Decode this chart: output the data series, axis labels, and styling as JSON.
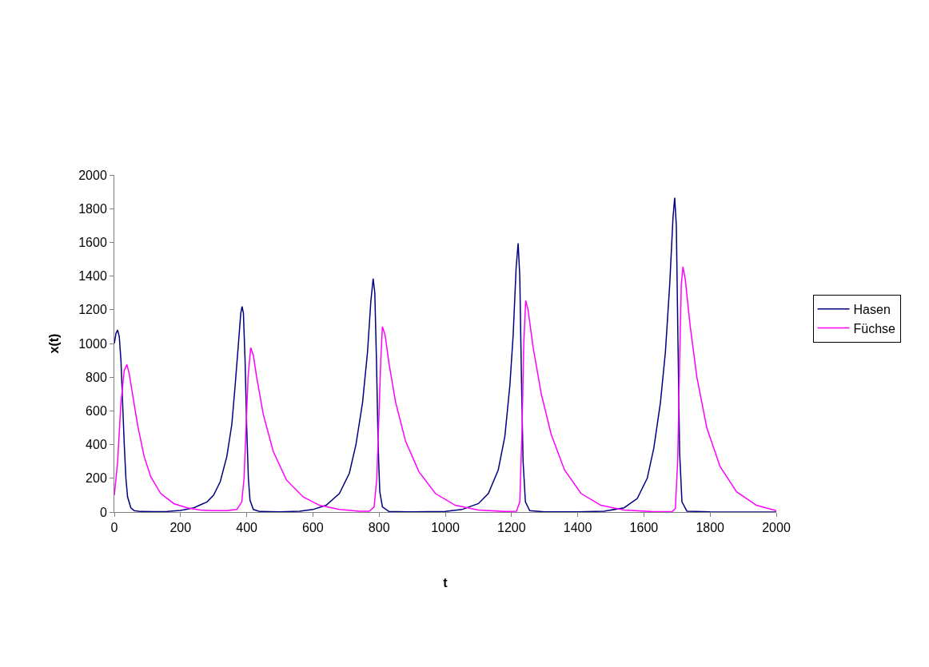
{
  "chart_data": {
    "type": "line",
    "xlabel": "t",
    "ylabel": "x(t)",
    "xlim": [
      0,
      2000
    ],
    "xticks": [
      0,
      200,
      400,
      600,
      800,
      1000,
      1200,
      1400,
      1600,
      1800,
      2000
    ],
    "ylim": [
      0,
      2000
    ],
    "yticks": [
      0,
      200,
      400,
      600,
      800,
      1000,
      1200,
      1400,
      1600,
      1800,
      2000
    ],
    "legend": "right",
    "marker": "none",
    "line_style": "solid",
    "series": [
      {
        "name": "Hasen",
        "color": "#000080",
        "x": [
          0,
          5,
          10,
          15,
          20,
          25,
          30,
          35,
          40,
          50,
          60,
          80,
          120,
          160,
          200,
          240,
          280,
          300,
          320,
          340,
          355,
          365,
          375,
          382,
          386,
          390,
          395,
          400,
          405,
          410,
          420,
          440,
          500,
          560,
          600,
          640,
          680,
          710,
          730,
          750,
          765,
          775,
          782,
          787,
          792,
          797,
          802,
          810,
          830,
          900,
          1000,
          1050,
          1100,
          1130,
          1160,
          1180,
          1195,
          1205,
          1214,
          1220,
          1225,
          1230,
          1235,
          1242,
          1255,
          1300,
          1400,
          1480,
          1540,
          1580,
          1610,
          1630,
          1650,
          1665,
          1678,
          1688,
          1693,
          1698,
          1703,
          1708,
          1715,
          1730,
          1800,
          2000
        ],
        "values": [
          1000,
          1060,
          1080,
          1040,
          900,
          650,
          400,
          200,
          90,
          25,
          8,
          3,
          2,
          4,
          10,
          25,
          60,
          100,
          180,
          330,
          520,
          750,
          1000,
          1180,
          1220,
          1180,
          900,
          500,
          200,
          70,
          15,
          3,
          1,
          5,
          15,
          40,
          110,
          230,
          400,
          650,
          950,
          1250,
          1385,
          1300,
          900,
          400,
          120,
          30,
          3,
          1,
          4,
          15,
          50,
          110,
          250,
          450,
          750,
          1050,
          1450,
          1595,
          1400,
          800,
          300,
          60,
          8,
          1,
          1,
          5,
          25,
          80,
          200,
          380,
          650,
          950,
          1350,
          1750,
          1865,
          1700,
          1000,
          350,
          60,
          5,
          1,
          0
        ]
      },
      {
        "name": "Füchse",
        "color": "#ff00ff",
        "x": [
          0,
          10,
          20,
          30,
          38,
          45,
          55,
          70,
          90,
          110,
          140,
          180,
          220,
          260,
          300,
          340,
          370,
          385,
          392,
          398,
          404,
          412,
          420,
          430,
          450,
          480,
          520,
          570,
          620,
          680,
          740,
          770,
          785,
          793,
          800,
          805,
          810,
          818,
          830,
          850,
          880,
          920,
          970,
          1030,
          1100,
          1180,
          1215,
          1225,
          1232,
          1237,
          1243,
          1250,
          1265,
          1290,
          1320,
          1360,
          1410,
          1470,
          1540,
          1620,
          1685,
          1695,
          1702,
          1708,
          1713,
          1718,
          1725,
          1740,
          1760,
          1790,
          1830,
          1880,
          1940,
          2000
        ],
        "values": [
          100,
          300,
          650,
          840,
          875,
          820,
          700,
          520,
          330,
          210,
          110,
          50,
          25,
          12,
          8,
          8,
          15,
          60,
          200,
          500,
          800,
          975,
          930,
          800,
          580,
          360,
          190,
          90,
          40,
          15,
          5,
          5,
          30,
          200,
          600,
          900,
          1100,
          1050,
          880,
          650,
          420,
          240,
          110,
          40,
          12,
          3,
          5,
          60,
          500,
          1000,
          1255,
          1200,
          980,
          700,
          460,
          250,
          110,
          40,
          12,
          3,
          2,
          20,
          300,
          900,
          1350,
          1455,
          1380,
          1100,
          800,
          500,
          270,
          120,
          40,
          8
        ]
      }
    ]
  }
}
